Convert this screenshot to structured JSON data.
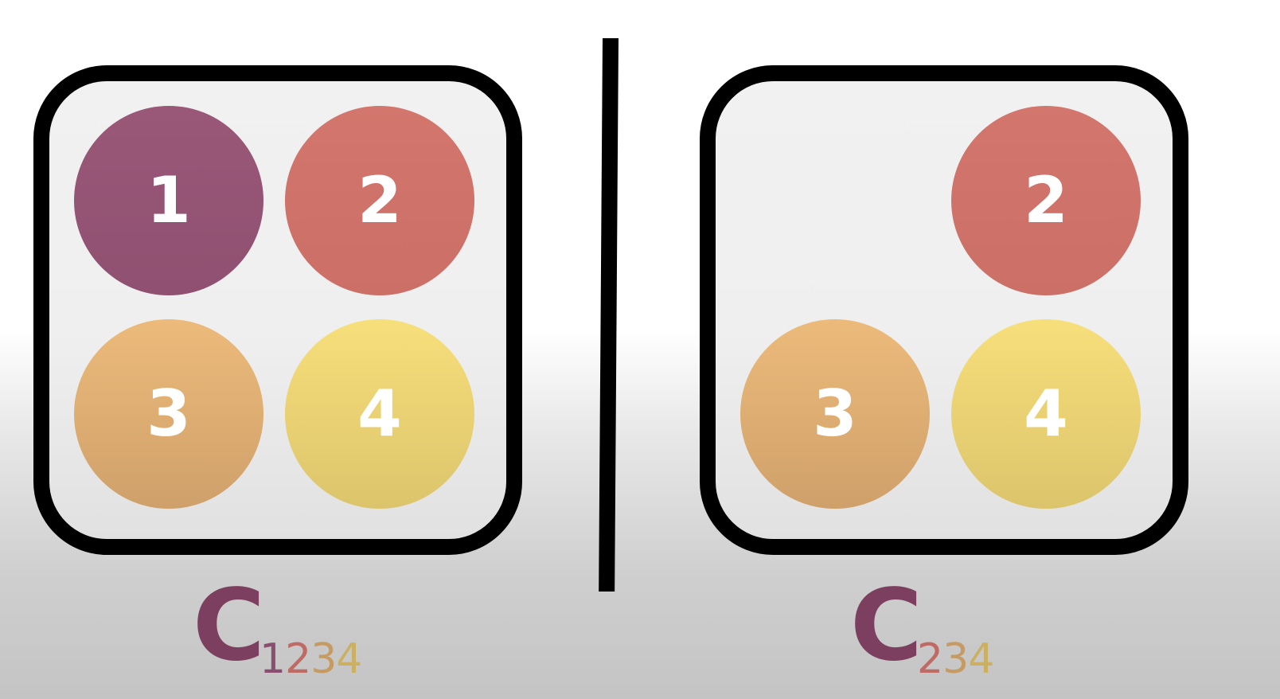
{
  "diagram": {
    "left_set": {
      "circles": [
        {
          "label": "1",
          "color": "#95557A"
        },
        {
          "label": "2",
          "color": "#D0736B"
        },
        {
          "label": "3",
          "color": "#E3B177"
        },
        {
          "label": "4",
          "color": "#EED277"
        }
      ],
      "caption": {
        "main": "C",
        "subscript": [
          "1",
          "2",
          "3",
          "4"
        ]
      }
    },
    "right_set": {
      "circles": [
        {
          "label": "2",
          "color": "#D0736B"
        },
        {
          "label": "3",
          "color": "#E3B177"
        },
        {
          "label": "4",
          "color": "#EED277"
        }
      ],
      "caption": {
        "main": "C",
        "subscript": [
          "2",
          "3",
          "4"
        ]
      }
    },
    "colors": {
      "border": "#000000",
      "caption_main": "#7D3F5F"
    }
  }
}
